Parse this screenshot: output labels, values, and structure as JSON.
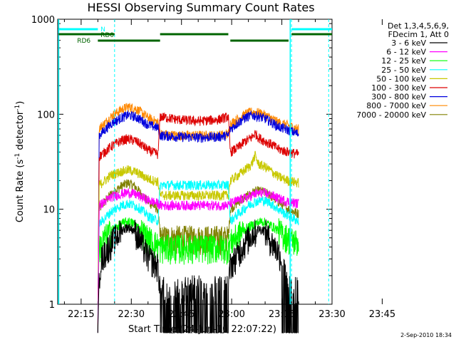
{
  "chart_data": {
    "type": "line",
    "title": "HESSI Observing Summary Count Rates",
    "xlabel": "Start Time (24-Jun-10 22:07:22)",
    "ylabel_main": "Count Rate (s",
    "ylabel_sup1": "-1",
    "ylabel_mid": " detector",
    "ylabel_sup2": "-1",
    "ylabel_end": ")",
    "yscale": "log",
    "ylim": [
      1,
      1000
    ],
    "y_ticks": [
      "1",
      "10",
      "100",
      "1000"
    ],
    "xlim_minutes": [
      8,
      90
    ],
    "x_ticks": [
      "22:15",
      "22:30",
      "22:45",
      "23:00",
      "23:15",
      "23:30",
      "23:45"
    ],
    "footer_date": "2-Sep-2010 18:34",
    "legend": {
      "header1": "Det 1,3,4,5,6,9,",
      "header2": "FDecim 1, Att 0",
      "entries": [
        {
          "label": "3 - 6 keV",
          "color": "#000000"
        },
        {
          "label": "6 - 12 keV",
          "color": "#ff00ff"
        },
        {
          "label": "12 - 25 keV",
          "color": "#00ff00"
        },
        {
          "label": "25 - 50 keV",
          "color": "#00ffff"
        },
        {
          "label": "50 - 100 keV",
          "color": "#c8c800"
        },
        {
          "label": "100 - 300 keV",
          "color": "#dd0000"
        },
        {
          "label": "300 - 800 keV",
          "color": "#0000dd"
        },
        {
          "label": "800 - 7000 keV",
          "color": "#ff8800"
        },
        {
          "label": "7000 - 20000 keV",
          "color": "#808000"
        }
      ]
    },
    "flags": [
      {
        "label": "N",
        "color": "#00ffff"
      },
      {
        "label": "RD0",
        "color": "#006400"
      },
      {
        "label": "RD6",
        "color": "#006400"
      }
    ],
    "series": [
      {
        "band": "3 - 6 keV",
        "color": "#000000",
        "points": [
          [
            20,
            0.7
          ],
          [
            20.4,
            2
          ],
          [
            21,
            3
          ],
          [
            23,
            4
          ],
          [
            25,
            5
          ],
          [
            27,
            6
          ],
          [
            29,
            6.5
          ],
          [
            31,
            6
          ],
          [
            33,
            4.5
          ],
          [
            35,
            3.2
          ],
          [
            38,
            2.5
          ],
          [
            38.6,
            1.5
          ],
          [
            44,
            1.5
          ],
          [
            50,
            1.5
          ],
          [
            56,
            1.5
          ],
          [
            59,
            1.5
          ],
          [
            59.6,
            2.6
          ],
          [
            62,
            3.5
          ],
          [
            64,
            4.5
          ],
          [
            66,
            5.5
          ],
          [
            68,
            6.2
          ],
          [
            70,
            6
          ],
          [
            72,
            4.5
          ],
          [
            74,
            3.6
          ],
          [
            75,
            3
          ],
          [
            77,
            1.5
          ],
          [
            80,
            1.5
          ]
        ]
      },
      {
        "band": "6 - 12 keV",
        "color": "#ff00ff",
        "points": [
          [
            20,
            0.7
          ],
          [
            20.4,
            11
          ],
          [
            22,
            12
          ],
          [
            24,
            13.5
          ],
          [
            27,
            14.5
          ],
          [
            29,
            15
          ],
          [
            31,
            14.5
          ],
          [
            33,
            13.5
          ],
          [
            35,
            12.5
          ],
          [
            38,
            11.5
          ],
          [
            38.6,
            11
          ],
          [
            44,
            11
          ],
          [
            50,
            11
          ],
          [
            56,
            11
          ],
          [
            59,
            11
          ],
          [
            59.6,
            11.5
          ],
          [
            62,
            12.5
          ],
          [
            65,
            13.5
          ],
          [
            67,
            14.5
          ],
          [
            69,
            15
          ],
          [
            71,
            14.5
          ],
          [
            74,
            13
          ],
          [
            77,
            12
          ],
          [
            80,
            11.5
          ]
        ]
      },
      {
        "band": "12 - 25 keV",
        "color": "#00ff00",
        "points": [
          [
            20,
            0.7
          ],
          [
            20.4,
            4
          ],
          [
            22,
            5
          ],
          [
            24,
            6
          ],
          [
            27,
            7
          ],
          [
            29,
            7.5
          ],
          [
            31,
            7
          ],
          [
            33,
            6
          ],
          [
            35,
            5
          ],
          [
            38,
            4.2
          ],
          [
            38.6,
            4
          ],
          [
            44,
            4
          ],
          [
            50,
            4
          ],
          [
            56,
            4
          ],
          [
            59,
            4
          ],
          [
            59.6,
            4.5
          ],
          [
            62,
            5.5
          ],
          [
            65,
            6.5
          ],
          [
            67,
            7
          ],
          [
            69,
            7.5
          ],
          [
            71,
            7
          ],
          [
            74,
            6
          ],
          [
            77,
            5
          ],
          [
            80,
            4.5
          ]
        ]
      },
      {
        "band": "25 - 50 keV",
        "color": "#00ffff",
        "points": [
          [
            20,
            0.7
          ],
          [
            20.4,
            7
          ],
          [
            22,
            8
          ],
          [
            24,
            9.5
          ],
          [
            27,
            11
          ],
          [
            29,
            11.5
          ],
          [
            31,
            11
          ],
          [
            33,
            10
          ],
          [
            35,
            8.5
          ],
          [
            38,
            7.5
          ],
          [
            38.6,
            18
          ],
          [
            44,
            18
          ],
          [
            50,
            18
          ],
          [
            56,
            18
          ],
          [
            59,
            18
          ],
          [
            59.6,
            7.5
          ],
          [
            62,
            9
          ],
          [
            65,
            11
          ],
          [
            67,
            12
          ],
          [
            69,
            12.5
          ],
          [
            71,
            12
          ],
          [
            74,
            10
          ],
          [
            77,
            8.5
          ],
          [
            80,
            7.5
          ]
        ]
      },
      {
        "band": "50 - 100 keV",
        "color": "#c8c800",
        "points": [
          [
            20,
            0.7
          ],
          [
            20.4,
            18
          ],
          [
            22,
            20
          ],
          [
            24,
            23
          ],
          [
            27,
            25
          ],
          [
            29,
            26
          ],
          [
            31,
            25
          ],
          [
            33,
            23
          ],
          [
            35,
            21
          ],
          [
            38,
            19.5
          ],
          [
            38.6,
            14
          ],
          [
            44,
            14
          ],
          [
            50,
            14
          ],
          [
            56,
            14
          ],
          [
            59,
            14
          ],
          [
            59.6,
            20
          ],
          [
            62,
            23
          ],
          [
            64,
            26
          ],
          [
            66,
            30
          ],
          [
            67,
            37
          ],
          [
            68,
            30
          ],
          [
            70,
            28
          ],
          [
            72,
            25
          ],
          [
            74,
            22
          ],
          [
            77,
            20
          ],
          [
            80,
            19
          ]
        ]
      },
      {
        "band": "100 - 300 keV",
        "color": "#dd0000",
        "points": [
          [
            20,
            0.7
          ],
          [
            20.4,
            36
          ],
          [
            22,
            40
          ],
          [
            24,
            46
          ],
          [
            27,
            53
          ],
          [
            29,
            55
          ],
          [
            31,
            53
          ],
          [
            33,
            48
          ],
          [
            35,
            42
          ],
          [
            38,
            38
          ],
          [
            38.6,
            95
          ],
          [
            44,
            88
          ],
          [
            50,
            85
          ],
          [
            56,
            88
          ],
          [
            59,
            95
          ],
          [
            59.6,
            40
          ],
          [
            62,
            45
          ],
          [
            64,
            52
          ],
          [
            66,
            57
          ],
          [
            67,
            63
          ],
          [
            68,
            57
          ],
          [
            70,
            52
          ],
          [
            72,
            48
          ],
          [
            74,
            43
          ],
          [
            77,
            40
          ],
          [
            80,
            38
          ]
        ]
      },
      {
        "band": "300 - 800 keV",
        "color": "#0000dd",
        "points": [
          [
            20,
            0.7
          ],
          [
            20.4,
            60
          ],
          [
            22,
            68
          ],
          [
            24,
            80
          ],
          [
            27,
            92
          ],
          [
            29,
            98
          ],
          [
            31,
            95
          ],
          [
            33,
            87
          ],
          [
            35,
            78
          ],
          [
            38,
            72
          ],
          [
            38.6,
            60
          ],
          [
            44,
            58
          ],
          [
            50,
            57
          ],
          [
            56,
            58
          ],
          [
            59,
            60
          ],
          [
            59.6,
            70
          ],
          [
            62,
            82
          ],
          [
            64,
            92
          ],
          [
            66,
            98
          ],
          [
            68,
            95
          ],
          [
            70,
            90
          ],
          [
            72,
            82
          ],
          [
            74,
            74
          ],
          [
            77,
            68
          ],
          [
            80,
            62
          ]
        ]
      },
      {
        "band": "800 - 7000 keV",
        "color": "#ff8800",
        "points": [
          [
            20,
            0.7
          ],
          [
            20.4,
            72
          ],
          [
            22,
            80
          ],
          [
            24,
            95
          ],
          [
            27,
            112
          ],
          [
            29,
            120
          ],
          [
            31,
            116
          ],
          [
            33,
            105
          ],
          [
            35,
            92
          ],
          [
            38,
            82
          ],
          [
            38.6,
            62
          ],
          [
            44,
            60
          ],
          [
            50,
            60
          ],
          [
            56,
            60
          ],
          [
            59,
            62
          ],
          [
            59.6,
            80
          ],
          [
            62,
            90
          ],
          [
            64,
            100
          ],
          [
            66,
            106
          ],
          [
            68,
            104
          ],
          [
            70,
            98
          ],
          [
            72,
            90
          ],
          [
            74,
            82
          ],
          [
            77,
            76
          ],
          [
            80,
            70
          ]
        ]
      },
      {
        "band": "7000 - 20000 keV",
        "color": "#808000",
        "points": [
          [
            20,
            0.7
          ],
          [
            20.4,
            10
          ],
          [
            22,
            12
          ],
          [
            24,
            14.5
          ],
          [
            27,
            17.5
          ],
          [
            29,
            19
          ],
          [
            31,
            17.5
          ],
          [
            33,
            14.5
          ],
          [
            35,
            12
          ],
          [
            38,
            10
          ],
          [
            38.6,
            5
          ],
          [
            44,
            5
          ],
          [
            50,
            5
          ],
          [
            56,
            5
          ],
          [
            59,
            5
          ],
          [
            59.6,
            10
          ],
          [
            62,
            12
          ],
          [
            65,
            14
          ],
          [
            67,
            15.5
          ],
          [
            69,
            15.5
          ],
          [
            71,
            14.5
          ],
          [
            74,
            12
          ],
          [
            77,
            10
          ],
          [
            80,
            9
          ]
        ]
      }
    ]
  }
}
